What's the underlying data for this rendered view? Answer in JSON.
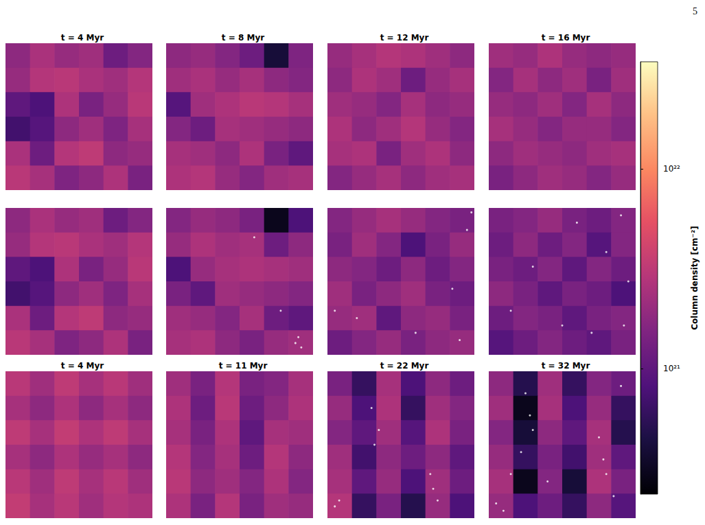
{
  "chart_data": {
    "type": "heatmap",
    "page_number": "5",
    "tick_labels": false,
    "colorbar": {
      "label": "Column density [cm⁻²]",
      "log": true,
      "lim": [
        2.35e+20,
        3.44e+22
      ],
      "ticks": [
        {
          "value": 1e+21,
          "label": "10²¹"
        },
        {
          "value": 1e+22,
          "label": "10²²"
        }
      ]
    },
    "rows": [
      [
        {
          "title": "t = 4 Myr",
          "cells": [
            [
              1.8e+21,
              2.5e+21,
              2e+21,
              2.2e+21,
              1.2e+21,
              1.6e+21
            ],
            [
              2e+21,
              2.8e+21,
              3e+21,
              2.5e+21,
              2.2e+21,
              2.8e+21
            ],
            [
              1e+21,
              8e+20,
              2.6e+21,
              1.4e+21,
              2e+21,
              3e+21
            ],
            [
              7e+20,
              9e+20,
              1.8e+21,
              2.2e+21,
              1.5e+21,
              2.4e+21
            ],
            [
              2.5e+21,
              1.2e+21,
              2.8e+21,
              3.2e+21,
              1.8e+21,
              2e+21
            ],
            [
              3e+21,
              2.4e+21,
              1.5e+21,
              1.8e+21,
              2.6e+21,
              1.4e+21
            ]
          ],
          "sinks": []
        },
        {
          "title": "t = 8 Myr",
          "cells": [
            [
              1.8e+21,
              2e+21,
              1.6e+21,
              1.2e+21,
              4e+20,
              1.5e+21
            ],
            [
              2.2e+21,
              2.5e+21,
              2e+21,
              2.4e+21,
              1.8e+21,
              1.6e+21
            ],
            [
              9e+20,
              2.2e+21,
              2.6e+21,
              3e+21,
              2.8e+21,
              2.4e+21
            ],
            [
              1.6e+21,
              1.2e+21,
              2.4e+21,
              2.2e+21,
              2e+21,
              1.8e+21
            ],
            [
              2.4e+21,
              2.2e+21,
              1.8e+21,
              2.6e+21,
              1.4e+21,
              1e+21
            ],
            [
              2.6e+21,
              2.8e+21,
              2e+21,
              1.6e+21,
              2.2e+21,
              2.4e+21
            ]
          ],
          "sinks": []
        },
        {
          "title": "t = 12 Myr",
          "cells": [
            [
              2e+21,
              2.4e+21,
              2.8e+21,
              2.6e+21,
              2.2e+21,
              1.8e+21
            ],
            [
              1.8e+21,
              2.6e+21,
              2.2e+21,
              1.2e+21,
              2e+21,
              2.4e+21
            ],
            [
              2.2e+21,
              2e+21,
              1.6e+21,
              2.4e+21,
              1.8e+21,
              2e+21
            ],
            [
              2.6e+21,
              1.8e+21,
              2.2e+21,
              2.8e+21,
              2e+21,
              1.6e+21
            ],
            [
              2.4e+21,
              2.6e+21,
              1.4e+21,
              2.2e+21,
              2.6e+21,
              1.8e+21
            ],
            [
              1.6e+21,
              2e+21,
              2.4e+21,
              1.8e+21,
              2.2e+21,
              2.4e+21
            ]
          ],
          "sinks": []
        },
        {
          "title": "t = 16 Myr",
          "cells": [
            [
              2.2e+21,
              2e+21,
              2.6e+21,
              2e+21,
              1.8e+21,
              2e+21
            ],
            [
              1.6e+21,
              2.4e+21,
              1.8e+21,
              2.2e+21,
              1.4e+21,
              2.2e+21
            ],
            [
              2e+21,
              1.8e+21,
              2.2e+21,
              1.6e+21,
              2.4e+21,
              1.8e+21
            ],
            [
              2.4e+21,
              2e+21,
              1.6e+21,
              2e+21,
              2e+21,
              1.6e+21
            ],
            [
              1.8e+21,
              2.2e+21,
              2e+21,
              1.8e+21,
              2.2e+21,
              2.4e+21
            ],
            [
              1.4e+21,
              1.8e+21,
              2.2e+21,
              2e+21,
              1.6e+21,
              2e+21
            ]
          ],
          "sinks": []
        }
      ],
      [
        {
          "title": null,
          "cells": [
            [
              1.8e+21,
              2.5e+21,
              2e+21,
              2.2e+21,
              1.2e+21,
              1.6e+21
            ],
            [
              2e+21,
              2.8e+21,
              3e+21,
              2.5e+21,
              2.2e+21,
              2.8e+21
            ],
            [
              1e+21,
              8e+20,
              2.6e+21,
              1.4e+21,
              2e+21,
              3e+21
            ],
            [
              7e+20,
              9e+20,
              1.8e+21,
              2.2e+21,
              1.5e+21,
              2.4e+21
            ],
            [
              2.5e+21,
              1.2e+21,
              2.8e+21,
              3.2e+21,
              1.8e+21,
              2e+21
            ],
            [
              3e+21,
              2.4e+21,
              1.5e+21,
              1.8e+21,
              2.6e+21,
              1.4e+21
            ]
          ],
          "sinks": []
        },
        {
          "title": null,
          "cells": [
            [
              1.6e+21,
              2e+21,
              1.8e+21,
              1.4e+21,
              3e+20,
              8e+20
            ],
            [
              2e+21,
              2.6e+21,
              2.2e+21,
              2.4e+21,
              1.2e+21,
              1.8e+21
            ],
            [
              8e+20,
              2e+21,
              2.4e+21,
              2.6e+21,
              2.4e+21,
              2.2e+21
            ],
            [
              1.4e+21,
              1e+21,
              2.2e+21,
              2e+21,
              1.8e+21,
              1.6e+21
            ],
            [
              2.2e+21,
              2e+21,
              1.6e+21,
              2.4e+21,
              1.2e+21,
              1e+21
            ],
            [
              2.4e+21,
              2.6e+21,
              1.8e+21,
              1.4e+21,
              2e+21,
              2.2e+21
            ]
          ],
          "sinks": [
            [
              0.88,
              0.08
            ],
            [
              0.9,
              0.12
            ],
            [
              0.78,
              0.3
            ],
            [
              0.6,
              0.8
            ],
            [
              0.92,
              0.05
            ]
          ]
        },
        {
          "title": null,
          "cells": [
            [
              1.6e+21,
              2e+21,
              2.4e+21,
              2e+21,
              1.6e+21,
              1.4e+21
            ],
            [
              1.4e+21,
              2.2e+21,
              1.6e+21,
              8e+20,
              1.4e+21,
              2e+21
            ],
            [
              1.8e+21,
              1.6e+21,
              1.2e+21,
              1.8e+21,
              1.2e+21,
              1.6e+21
            ],
            [
              2.2e+21,
              1.4e+21,
              1.8e+21,
              2.2e+21,
              1.4e+21,
              1.2e+21
            ],
            [
              2e+21,
              2.2e+21,
              1e+21,
              1.8e+21,
              2e+21,
              1.4e+21
            ],
            [
              1.2e+21,
              1.6e+21,
              2e+21,
              1.4e+21,
              1.8e+21,
              2e+21
            ]
          ],
          "sinks": [
            [
              0.98,
              0.97
            ],
            [
              0.9,
              0.1
            ],
            [
              0.2,
              0.25
            ],
            [
              0.05,
              0.3
            ],
            [
              0.6,
              0.15
            ],
            [
              0.85,
              0.45
            ],
            [
              0.95,
              0.85
            ]
          ]
        },
        {
          "title": null,
          "cells": [
            [
              1.4e+21,
              1.6e+21,
              2e+21,
              1.4e+21,
              1.2e+21,
              1.6e+21
            ],
            [
              1.2e+21,
              1.8e+21,
              1.2e+21,
              1.6e+21,
              9e+20,
              1.6e+21
            ],
            [
              1.4e+21,
              1.2e+21,
              1.6e+21,
              1e+21,
              1.6e+21,
              1.2e+21
            ],
            [
              1.8e+21,
              1.4e+21,
              1e+21,
              1.4e+21,
              1.2e+21,
              8e+20
            ],
            [
              1.2e+21,
              1.6e+21,
              1.4e+21,
              1e+21,
              1.4e+21,
              1.6e+21
            ],
            [
              9e+20,
              1.2e+21,
              1.6e+21,
              1.2e+21,
              1e+21,
              1.4e+21
            ]
          ],
          "sinks": [
            [
              0.3,
              0.6
            ],
            [
              0.5,
              0.2
            ],
            [
              0.8,
              0.7
            ],
            [
              0.9,
              0.95
            ],
            [
              0.95,
              0.5
            ],
            [
              0.15,
              0.3
            ],
            [
              0.6,
              0.9
            ],
            [
              0.7,
              0.15
            ],
            [
              0.92,
              0.2
            ]
          ]
        }
      ],
      [
        {
          "title": "t = 4 Myr",
          "cells": [
            [
              3e+21,
              2.2e+21,
              3.2e+21,
              2.4e+21,
              3e+21,
              2.2e+21
            ],
            [
              2.4e+21,
              1.8e+21,
              2.6e+21,
              1.8e+21,
              2.4e+21,
              1.8e+21
            ],
            [
              3.2e+21,
              2.4e+21,
              3.4e+21,
              2.6e+21,
              3.2e+21,
              2.4e+21
            ],
            [
              2.4e+21,
              1.8e+21,
              2.6e+21,
              2e+21,
              2.4e+21,
              1.8e+21
            ],
            [
              3e+21,
              2.2e+21,
              3.2e+21,
              2.4e+21,
              3e+21,
              2.2e+21
            ],
            [
              3.4e+21,
              2.4e+21,
              3e+21,
              2.2e+21,
              2.8e+21,
              2.6e+21
            ]
          ],
          "sinks": []
        },
        {
          "title": "t = 11 Myr",
          "cells": [
            [
              2.2e+21,
              1.4e+21,
              2.8e+21,
              1.4e+21,
              1.6e+21,
              2.4e+21
            ],
            [
              2.6e+21,
              1.2e+21,
              3e+21,
              1.2e+21,
              1.8e+21,
              2.6e+21
            ],
            [
              2.4e+21,
              1.4e+21,
              2.6e+21,
              1e+21,
              2.4e+21,
              2.2e+21
            ],
            [
              2.8e+21,
              1.6e+21,
              2.4e+21,
              1.2e+21,
              2.8e+21,
              1.8e+21
            ],
            [
              3e+21,
              1.8e+21,
              2.2e+21,
              1.6e+21,
              2.6e+21,
              1.6e+21
            ],
            [
              2.6e+21,
              1.4e+21,
              2.8e+21,
              1.4e+21,
              2.2e+21,
              2e+21
            ]
          ],
          "sinks": []
        },
        {
          "title": "t = 22 Myr",
          "cells": [
            [
              1.4e+21,
              6e+20,
              2.4e+21,
              8e+20,
              1.8e+21,
              1.2e+21
            ],
            [
              2e+21,
              8e+20,
              2.6e+21,
              6e+20,
              2.2e+21,
              1.6e+21
            ],
            [
              1.6e+21,
              1e+21,
              2.2e+21,
              9e+20,
              2.6e+21,
              1.4e+21
            ],
            [
              2.2e+21,
              7e+20,
              1.8e+21,
              1.2e+21,
              1.8e+21,
              1e+21
            ],
            [
              2.4e+21,
              1e+21,
              2e+21,
              8e+20,
              2.2e+21,
              1.2e+21
            ],
            [
              2.8e+21,
              6e+20,
              1.4e+21,
              5e+20,
              2e+21,
              8e+20
            ]
          ],
          "sinks": [
            [
              0.3,
              0.75
            ],
            [
              0.35,
              0.6
            ],
            [
              0.32,
              0.5
            ],
            [
              0.05,
              0.08
            ],
            [
              0.08,
              0.12
            ],
            [
              0.7,
              0.3
            ],
            [
              0.72,
              0.2
            ],
            [
              0.75,
              0.12
            ]
          ]
        },
        {
          "title": "t = 32 Myr",
          "cells": [
            [
              1.8e+21,
              5e+20,
              2.2e+21,
              6e+20,
              1.6e+21,
              1.2e+21
            ],
            [
              2.2e+21,
              3e+20,
              2.4e+21,
              8e+20,
              2e+21,
              6e+20
            ],
            [
              1.6e+21,
              4e+20,
              1.8e+21,
              1e+21,
              2.4e+21,
              5e+20
            ],
            [
              2e+21,
              6e+20,
              1.4e+21,
              7e+20,
              2.2e+21,
              1e+21
            ],
            [
              2.4e+21,
              3e+20,
              1.6e+21,
              4e+20,
              2.6e+21,
              1.4e+21
            ],
            [
              2e+21,
              8e+20,
              1.2e+21,
              6e+20,
              1.8e+21,
              9e+20
            ]
          ],
          "sinks": [
            [
              0.25,
              0.85
            ],
            [
              0.28,
              0.7
            ],
            [
              0.3,
              0.6
            ],
            [
              0.22,
              0.45
            ],
            [
              0.05,
              0.1
            ],
            [
              0.1,
              0.05
            ],
            [
              0.75,
              0.55
            ],
            [
              0.78,
              0.4
            ],
            [
              0.8,
              0.3
            ],
            [
              0.85,
              0.15
            ],
            [
              0.4,
              0.25
            ],
            [
              0.15,
              0.3
            ],
            [
              0.9,
              0.9
            ]
          ]
        }
      ]
    ]
  }
}
